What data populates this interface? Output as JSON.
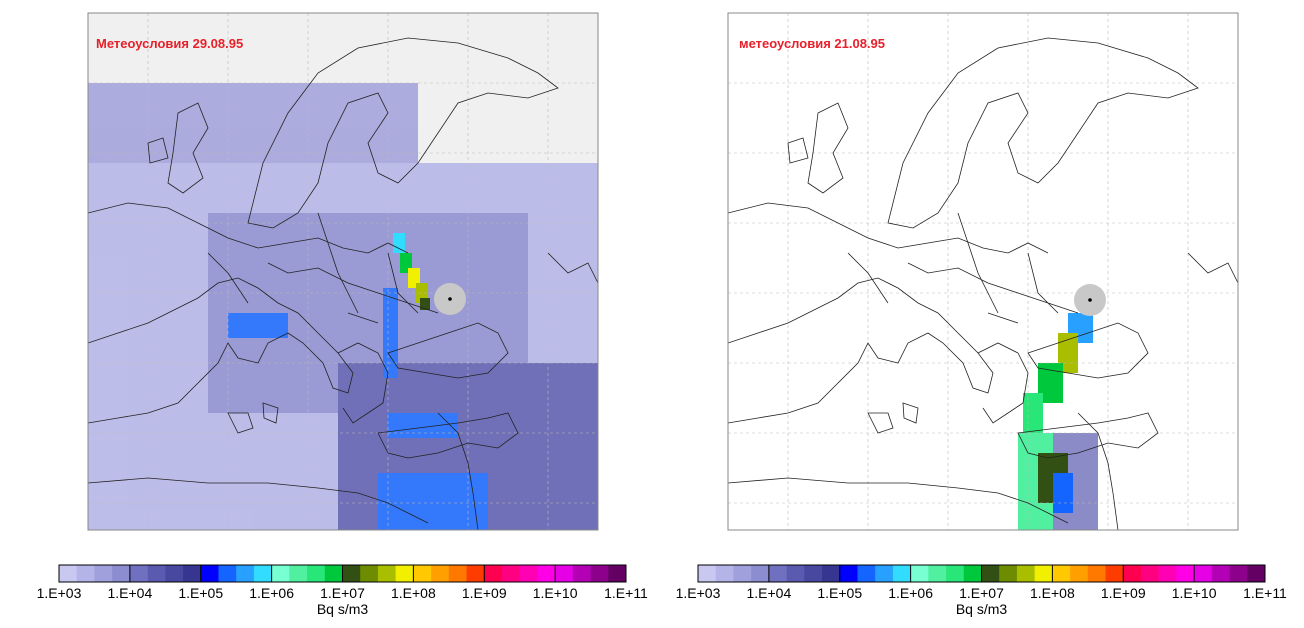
{
  "panels": [
    {
      "title": "Метеоусловия 29.08.95"
    },
    {
      "title": "метеоусловия 21.08.95"
    }
  ],
  "colorbar": {
    "scale": "log",
    "lim": [
      1000,
      100000000000
    ],
    "label": "Bq s/m3",
    "ticks": [
      {
        "value": 1000,
        "label": "1.E+03"
      },
      {
        "value": 10000,
        "label": "1.E+04"
      },
      {
        "value": 100000,
        "label": "1.E+05"
      },
      {
        "value": 1000000,
        "label": "1.E+06"
      },
      {
        "value": 10000000,
        "label": "1.E+07"
      },
      {
        "value": 100000000,
        "label": "1.E+08"
      },
      {
        "value": 1000000000,
        "label": "1.E+09"
      },
      {
        "value": 10000000000,
        "label": "1.E+10"
      },
      {
        "value": 100000000000,
        "label": "1.E+11"
      }
    ],
    "colors": [
      "#c8c8f0",
      "#b4b4e8",
      "#a0a0dc",
      "#8c8cd0",
      "#7070c0",
      "#5a5ab0",
      "#4848a0",
      "#363690",
      "#0000ff",
      "#1464ff",
      "#28a0ff",
      "#32dcff",
      "#78ffd2",
      "#50f0a0",
      "#28e678",
      "#00c83c",
      "#325014",
      "#6e8c00",
      "#aabe00",
      "#f0f000",
      "#ffc800",
      "#ffa000",
      "#ff7800",
      "#ff3c00",
      "#ff0050",
      "#ff0080",
      "#ff00b4",
      "#ff00e6",
      "#e600e6",
      "#b400b4",
      "#8c008c",
      "#640064"
    ]
  }
}
